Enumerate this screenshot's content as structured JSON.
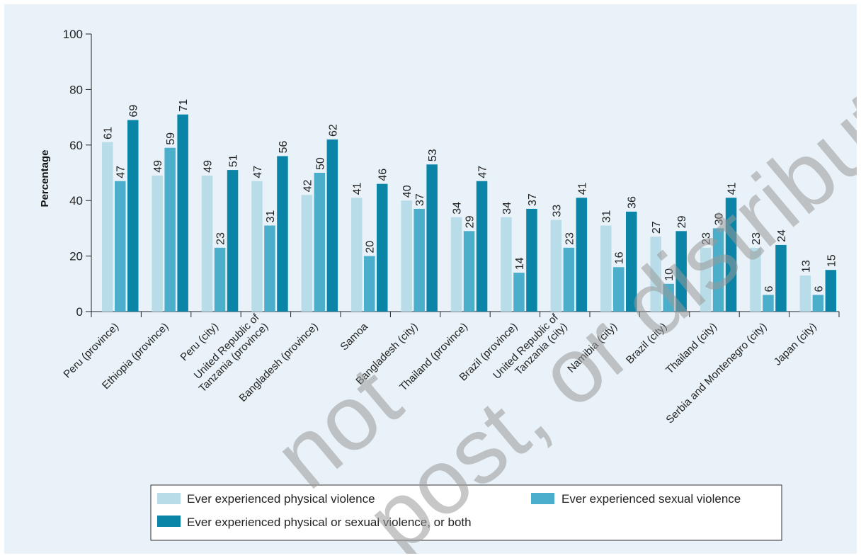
{
  "chart_data": {
    "type": "bar",
    "title": "",
    "xlabel": "",
    "ylabel": "Percentage",
    "ylim": [
      0,
      100
    ],
    "yticks": [
      0,
      20,
      40,
      60,
      80,
      100
    ],
    "grid": false,
    "legend_position": "bottom",
    "categories": [
      [
        "Peru (province)"
      ],
      [
        "Ethiopia (province)"
      ],
      [
        "Peru (city)"
      ],
      [
        "United Republic of",
        "Tanzania (province)"
      ],
      [
        "Bangladesh (province)"
      ],
      [
        "Samoa"
      ],
      [
        "Bangladesh (city)"
      ],
      [
        "Thailand (province)"
      ],
      [
        "Brazil (province)"
      ],
      [
        "United Republic of",
        "Tanzania (city)"
      ],
      [
        "Namibia (city)"
      ],
      [
        "Brazil (city)"
      ],
      [
        "Thailand (city)"
      ],
      [
        "Serbia and Montenegro (city)"
      ],
      [
        "Japan (city)"
      ]
    ],
    "series": [
      {
        "name": "Ever experienced physical violence",
        "color": "#b9dde8",
        "values": [
          61,
          49,
          49,
          47,
          42,
          41,
          40,
          34,
          34,
          33,
          31,
          27,
          23,
          23,
          13
        ]
      },
      {
        "name": "Ever experienced sexual violence",
        "color": "#4bafcc",
        "values": [
          47,
          59,
          23,
          31,
          50,
          20,
          37,
          29,
          14,
          23,
          16,
          10,
          30,
          6,
          6
        ]
      },
      {
        "name": "Ever experienced physical or sexual violence, or both",
        "color": "#0a85a8",
        "values": [
          69,
          71,
          51,
          56,
          62,
          46,
          53,
          47,
          37,
          41,
          36,
          29,
          41,
          24,
          15
        ]
      }
    ]
  },
  "watermark": {
    "line1": "not",
    "line2": "post, or distribute"
  }
}
